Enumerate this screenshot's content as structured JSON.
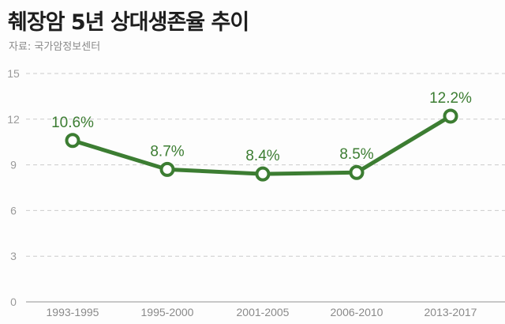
{
  "header": {
    "title": "췌장암 5년 상대생존율 추이",
    "source": "자료: 국가암정보센터"
  },
  "colors": {
    "line": "#3c7d32",
    "grid": "#cccccc",
    "axis": "#c8c8c8",
    "tick_text": "#9a9a9a"
  },
  "chart_data": {
    "type": "line",
    "title": "췌장암 5년 상대생존율 추이",
    "subtitle": "자료: 국가암정보센터",
    "categories": [
      "1993-1995",
      "1995-2000",
      "2001-2005",
      "2006-2010",
      "2013-2017"
    ],
    "values": [
      10.6,
      8.7,
      8.4,
      8.5,
      12.2
    ],
    "value_labels": [
      "10.6%",
      "8.7%",
      "8.4%",
      "8.5%",
      "12.2%"
    ],
    "xlabel": "",
    "ylabel": "",
    "ylim": [
      0,
      15
    ],
    "yticks": [
      "0",
      "3",
      "6",
      "9",
      "12",
      "15"
    ],
    "grid": true,
    "legend": null
  }
}
